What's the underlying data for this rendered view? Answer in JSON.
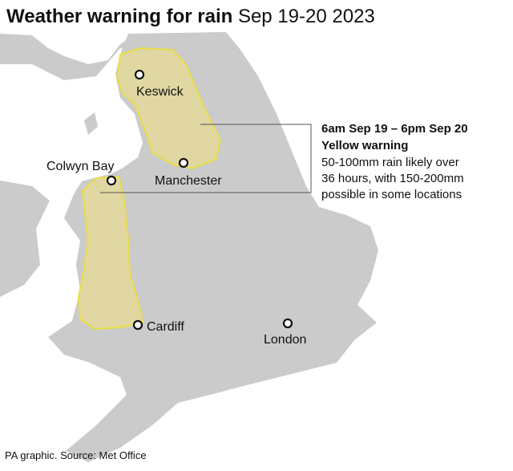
{
  "title": {
    "main": "Weather warning for rain",
    "dates": "Sep 19-20 2023"
  },
  "cities": [
    "Keswick",
    "Manchester",
    "Colwyn Bay",
    "Cardiff",
    "London"
  ],
  "warning": {
    "period": "6am Sep 19 – 6pm Sep 20",
    "level": "Yellow warning",
    "lines": [
      "50-100mm rain likely over",
      "36 hours, with 150-200mm",
      "possible in some locations"
    ]
  },
  "source": "PA graphic. Source: Met Office"
}
